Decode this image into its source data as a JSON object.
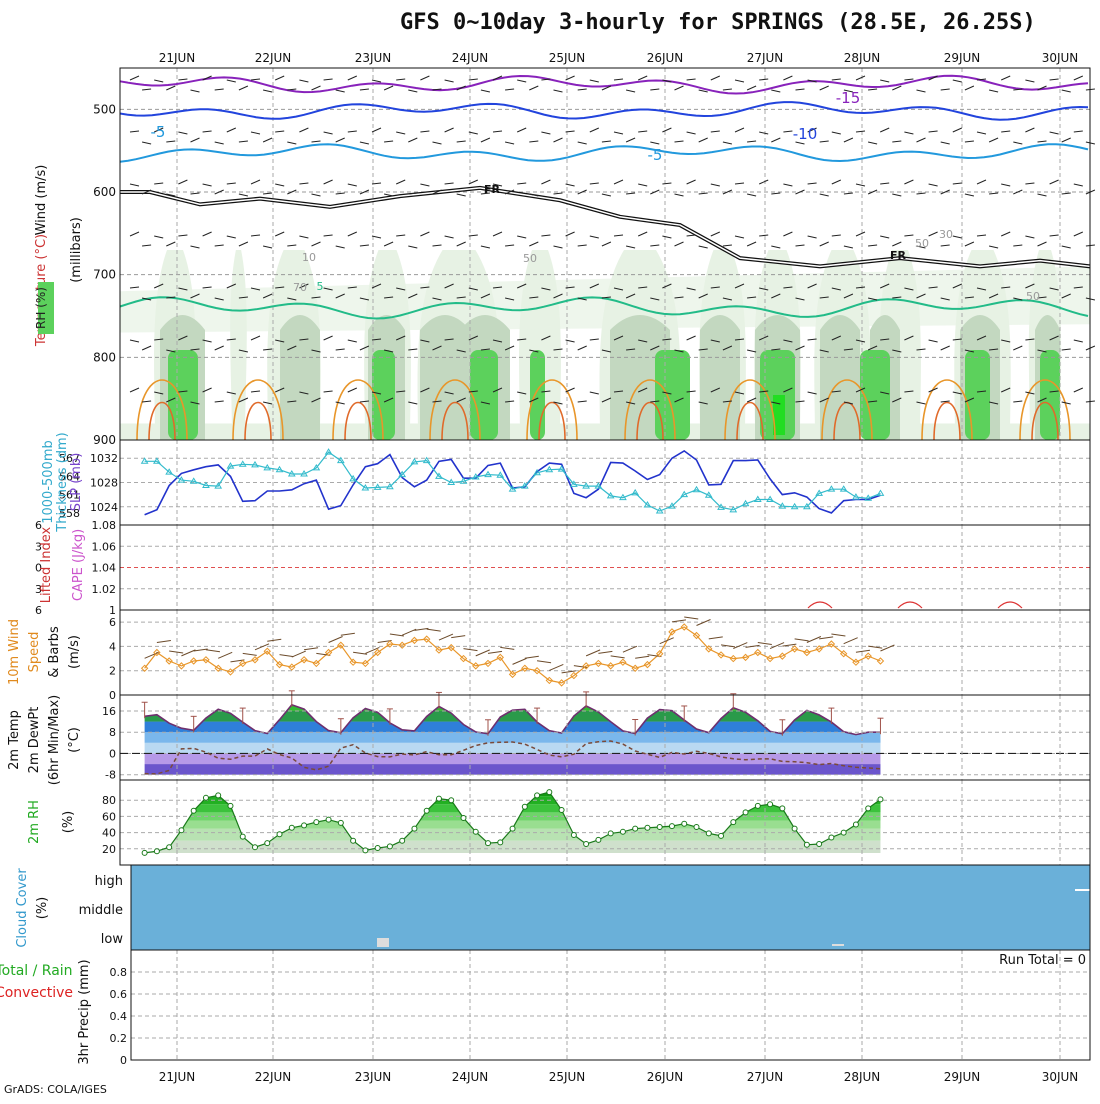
{
  "title": "GFS 0~10day 3-hourly for SPRINGS (28.5E, 26.25S)",
  "credit": "GrADS: COLA/IGES",
  "run_total": "Run Total = 0",
  "days": [
    "21JUN",
    "22JUN",
    "23JUN",
    "24JUN",
    "25JUN",
    "26JUN",
    "27JUN",
    "28JUN",
    "29JUN",
    "30JUN"
  ],
  "panel_labels": {
    "upper_air": [
      {
        "text": "Wind (m/s)",
        "color": "#111111"
      },
      {
        "text": "Temperature (°C)",
        "color": "#cc3333"
      },
      {
        "text": "RH (%)",
        "color": "#222222"
      }
    ],
    "upper_air_unit": "(millibars)",
    "slp": [
      {
        "text": "SLP (mb)",
        "color": "#7744cc"
      },
      {
        "text": "Thickness (dm)",
        "color": "#33aacc"
      },
      {
        "text": "1000-500mb",
        "color": "#33aacc"
      }
    ],
    "cape": [
      {
        "text": "CAPE (J/kg)",
        "color": "#cc55cc"
      },
      {
        "text": "Lifted Index",
        "color": "#cc3333"
      }
    ],
    "wind10m": [
      {
        "text": "10m Wind",
        "color": "#e08a1e"
      },
      {
        "text": "Speed",
        "color": "#e08a1e"
      },
      {
        "text": "& Barbs",
        "color": "#111111"
      },
      {
        "text": "(m/s)",
        "color": "#111111"
      }
    ],
    "temp2m": [
      {
        "text": "2m Temp",
        "color": "#111111"
      },
      {
        "text": "2m DewPt",
        "color": "#111111"
      },
      {
        "text": "(6hr Min/Max)",
        "color": "#111111"
      },
      {
        "text": "(°C)",
        "color": "#111111"
      }
    ],
    "rh2m": [
      {
        "text": "2m RH",
        "color": "#22aa22"
      },
      {
        "text": "(%)",
        "color": "#111111"
      }
    ],
    "cloud": [
      {
        "text": "Cloud Cover",
        "color": "#3399cc"
      },
      {
        "text": "(%)",
        "color": "#111111"
      }
    ],
    "precip": [
      {
        "text": "Total / Rain",
        "color": "#22aa22"
      },
      {
        "text": "Convective",
        "color": "#dd2222"
      },
      {
        "text": "3hr Precip (mm)",
        "color": "#111111"
      }
    ]
  },
  "cloud_levels": [
    "high",
    "middle",
    "low"
  ],
  "contour_labels": [
    "-15",
    "-10",
    "-5",
    "-5",
    "FR",
    "FR",
    "5",
    "50",
    "30",
    "10",
    "70",
    "50",
    "50"
  ],
  "colors": {
    "rh_light": "#e7f2e4",
    "rh_mid": "#c3d8c0",
    "rh_dark": "#a9baa7",
    "rh_green": "#5cd15c",
    "cloud": "#6ab0d9",
    "slp": "#2233cc",
    "thick": "#33bbcc",
    "speed": "#e8962a",
    "temp": "#6e2f6e",
    "dew": "#7a4a3a",
    "rh2m": "#22bb22"
  },
  "chart_data": [
    {
      "type": "heatmap",
      "name": "upper-air",
      "ylabel": "(millibars)",
      "ylim": [
        900,
        450
      ],
      "y_ticks": [
        500,
        600,
        700,
        800,
        900
      ],
      "temperature_contours": [
        -15,
        -10,
        -5,
        0,
        5
      ],
      "rh_levels": [
        10,
        30,
        50,
        70
      ]
    },
    {
      "type": "line",
      "name": "slp-thickness",
      "y_ticks_left": [
        558,
        561,
        564,
        567
      ],
      "y_ticks_right": [
        1024,
        1028,
        1032
      ],
      "series": [
        {
          "name": "SLP (mb)",
          "values": [
            1022.7,
            1023.5,
            1027.5,
            1029.5,
            1030.1,
            1030.6,
            1030.9,
            1029.0,
            1024.9,
            1025.0,
            1026.6,
            1026.6,
            1026.8,
            1027.8,
            1028.4,
            1023.6,
            1024.2,
            1027.6,
            1030.6,
            1031.1,
            1032.6,
            1028.8,
            1027.3,
            1028.4,
            1031.5,
            1031.8,
            1028.7,
            1028.7,
            1030.8,
            1031.2,
            1027.1,
            1027.3,
            1029.8,
            1031.2,
            1031.0,
            1026.2,
            1025.5,
            1026.9,
            1031.3,
            1031.2,
            1029.9,
            1028.5,
            1029.3,
            1032.0,
            1033.2,
            1031.7,
            1027.6,
            1027.7,
            1031.6,
            1031.6,
            1031.7,
            1028.6,
            1026.0,
            1026.3,
            1025.6,
            1023.7,
            1023.0,
            1025.0,
            1025.2,
            1025.2,
            1025.9
          ]
        },
        {
          "name": "Thickness (dm)",
          "values": [
            566.5,
            566.5,
            564.7,
            563.4,
            563.2,
            562.5,
            562.4,
            565.7,
            566.0,
            565.9,
            565.4,
            565.1,
            564.4,
            564.4,
            565.4,
            568.0,
            566.6,
            563.6,
            562.1,
            562.2,
            562.3,
            564.3,
            566.4,
            566.6,
            564.0,
            563.0,
            563.2,
            563.9,
            564.3,
            564.2,
            561.9,
            562.4,
            564.6,
            565.1,
            565.2,
            562.7,
            562.4,
            562.4,
            560.8,
            560.5,
            561.3,
            559.3,
            558.3,
            559.1,
            561.0,
            561.8,
            560.9,
            558.9,
            558.5,
            559.5,
            560.2,
            560.2,
            559.1,
            559.0,
            559.0,
            561.2,
            561.9,
            561.9,
            560.6,
            560.4,
            561.2
          ]
        }
      ]
    },
    {
      "type": "line",
      "name": "cape-lifted-index",
      "y_ticks_left": [
        -6,
        -3,
        0,
        3,
        6
      ],
      "y_ticks_right": [
        1,
        1.02,
        1.04,
        1.06,
        1.08
      ],
      "series": [
        {
          "name": "Lifted Index",
          "values": []
        },
        {
          "name": "CAPE (J/kg)",
          "values": []
        }
      ]
    },
    {
      "type": "line",
      "name": "wind-10m",
      "ylim": [
        0,
        7
      ],
      "y_ticks": [
        0,
        2,
        4,
        6
      ],
      "series": [
        {
          "name": "Speed",
          "values": [
            2.2,
            3.5,
            2.8,
            2.4,
            2.8,
            2.9,
            2.2,
            1.9,
            2.6,
            2.9,
            3.6,
            2.5,
            2.3,
            2.9,
            2.6,
            3.5,
            4.1,
            2.7,
            2.6,
            3.5,
            4.2,
            4.1,
            4.5,
            4.6,
            3.7,
            3.9,
            3.0,
            2.4,
            2.6,
            3.1,
            1.7,
            2.2,
            2.0,
            1.2,
            1.0,
            1.6,
            2.4,
            2.6,
            2.4,
            2.7,
            2.2,
            2.5,
            3.4,
            5.2,
            5.6,
            4.9,
            3.8,
            3.3,
            3.0,
            3.1,
            3.5,
            3.0,
            3.2,
            3.8,
            3.5,
            3.8,
            4.2,
            3.4,
            2.7,
            3.2,
            2.8
          ]
        }
      ]
    },
    {
      "type": "area",
      "name": "temp-2m",
      "ylim": [
        -8,
        20
      ],
      "y_ticks": [
        -8,
        0,
        8,
        16
      ],
      "series": [
        {
          "name": "2m Temp",
          "values": [
            14.0,
            14.6,
            11.4,
            9.5,
            8.7,
            13.3,
            16.6,
            15.1,
            11.8,
            8.6,
            7.5,
            12.7,
            18.3,
            16.7,
            12.0,
            8.6,
            7.8,
            13.4,
            16.9,
            15.5,
            11.5,
            8.9,
            8.5,
            13.9,
            17.7,
            15.2,
            10.9,
            8.1,
            7.4,
            13.7,
            16.3,
            16.6,
            11.8,
            8.6,
            7.7,
            14.1,
            17.9,
            15.6,
            11.9,
            8.5,
            7.5,
            13.3,
            16.5,
            16.1,
            12.6,
            9.2,
            7.8,
            13.1,
            17.2,
            15.5,
            12.3,
            8.3,
            7.4,
            12.6,
            16.2,
            14.5,
            11.8,
            8.2,
            7.1,
            8.0,
            8.0
          ]
        },
        {
          "name": "2m DewPt",
          "values": [
            -7.6,
            -7.7,
            -6.4,
            1.7,
            1.9,
            0.5,
            -1.8,
            -2.2,
            -1.0,
            -1.0,
            1.7,
            -0.4,
            -1.7,
            -5.2,
            -6.2,
            -4.8,
            2.0,
            3.3,
            0.2,
            -1.2,
            -1.3,
            -0.2,
            -0.6,
            0.7,
            -0.5,
            -0.5,
            1.2,
            3.0,
            4.0,
            4.2,
            4.3,
            3.5,
            1.5,
            -0.6,
            -1.3,
            -0.3,
            3.7,
            4.4,
            4.7,
            3.5,
            0.9,
            -0.3,
            -1.5,
            0.4,
            -0.2,
            0.8,
            0.0,
            -1.3,
            -2.0,
            -2.4,
            -2.1,
            -2.0,
            -3.0,
            -3.1,
            -3.5,
            -4.2,
            -3.8,
            -4.6,
            -5.2,
            -5.5,
            -5.8
          ]
        }
      ]
    },
    {
      "type": "area",
      "name": "rh-2m",
      "ylim": [
        0,
        100
      ],
      "y_ticks": [
        20,
        40,
        60,
        80
      ],
      "series": [
        {
          "name": "2m RH",
          "values": [
            15,
            17,
            22,
            43,
            67,
            83,
            86,
            73,
            35,
            22,
            27,
            38,
            46,
            49,
            53,
            56,
            52,
            30,
            18,
            21,
            23,
            30,
            45,
            67,
            82,
            80,
            58,
            41,
            27,
            28,
            45,
            72,
            86,
            90,
            68,
            37,
            26,
            31,
            39,
            41,
            45,
            46,
            47,
            48,
            51,
            47,
            39,
            36,
            53,
            65,
            73,
            75,
            70,
            45,
            25,
            26,
            34,
            40,
            50,
            70,
            81
          ]
        }
      ]
    },
    {
      "type": "heatmap",
      "name": "cloud-cover",
      "y_categories": [
        "high",
        "middle",
        "low"
      ],
      "values": "overcast"
    },
    {
      "type": "bar",
      "name": "precip-3hr",
      "ylim": [
        0,
        1
      ],
      "y_ticks": [
        0,
        0.2,
        0.4,
        0.6,
        0.8
      ],
      "values": [],
      "run_total": 0
    }
  ]
}
